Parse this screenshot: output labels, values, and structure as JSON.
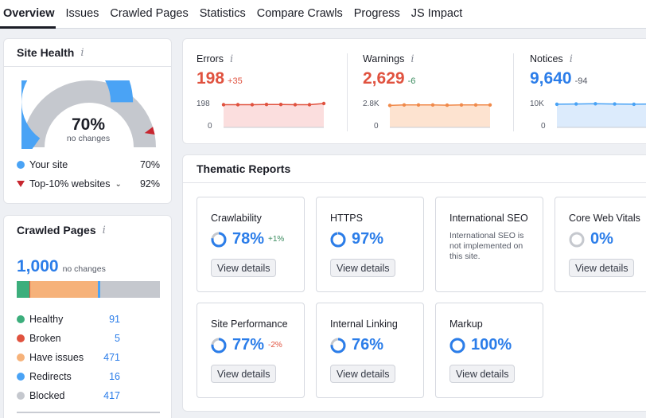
{
  "tabs": [
    "Overview",
    "Issues",
    "Crawled Pages",
    "Statistics",
    "Compare Crawls",
    "Progress",
    "JS Impact"
  ],
  "site_health": {
    "title": "Site Health",
    "info_icon": "i",
    "score": "70%",
    "score_fraction": 0.7,
    "sub": "no changes",
    "your_site_label": "Your site",
    "your_site_value": "70%",
    "top10_label": "Top-10% websites",
    "top10_value": "92%",
    "top10_fraction": 0.92,
    "colors": {
      "your_site": "#4aa3f5",
      "top10": "#c7262f",
      "remainder": "#c5c8ce"
    }
  },
  "crawled_pages": {
    "title": "Crawled Pages",
    "info_icon": "i",
    "total": "1,000",
    "sub": "no changes",
    "items": [
      {
        "label": "Healthy",
        "value": "91",
        "color": "#3cae7c"
      },
      {
        "label": "Broken",
        "value": "5",
        "color": "#e0523f"
      },
      {
        "label": "Have issues",
        "value": "471",
        "color": "#f6b27a"
      },
      {
        "label": "Redirects",
        "value": "16",
        "color": "#4aa3f5"
      },
      {
        "label": "Blocked",
        "value": "417",
        "color": "#c5c8ce"
      }
    ]
  },
  "metrics": [
    {
      "label": "Errors",
      "info_icon": "i",
      "value": "198",
      "delta": "+35",
      "color": "#e0523f",
      "delta_color": "#e0523f",
      "fill": "#fbdede",
      "ymax_label": "198",
      "ymin_label": "0",
      "spark": [
        0.95,
        0.95,
        0.95,
        0.96,
        0.96,
        0.95,
        0.95,
        1.0
      ]
    },
    {
      "label": "Warnings",
      "info_icon": "i",
      "value": "2,629",
      "delta": "-6",
      "color": "#e0523f",
      "delta_color": "#3a8b5e",
      "fill": "#fde3d0",
      "ymax_label": "2.8K",
      "ymin_label": "0",
      "spark": [
        0.92,
        0.94,
        0.94,
        0.94,
        0.93,
        0.94,
        0.94,
        0.94
      ]
    },
    {
      "label": "Notices",
      "info_icon": "i",
      "value": "9,640",
      "delta": "-94",
      "color": "#2b7de9",
      "delta_color": "#555a66",
      "fill": "#dcebfc",
      "ymax_label": "10K",
      "ymin_label": "0",
      "spark": [
        0.97,
        0.98,
        0.99,
        0.98,
        0.97,
        0.98
      ]
    }
  ],
  "thematic": {
    "title": "Thematic Reports",
    "button_label": "View details",
    "cards": [
      {
        "name": "Crawlability",
        "value": "78%",
        "fraction": 0.78,
        "delta": "+1%",
        "delta_color": "#3a8b5e"
      },
      {
        "name": "HTTPS",
        "value": "97%",
        "fraction": 0.97,
        "delta": ""
      },
      {
        "name": "International SEO",
        "value": "",
        "note": "International SEO is not implemented on this site."
      },
      {
        "name": "Core Web Vitals",
        "value": "0%",
        "fraction": 0.0,
        "delta": ""
      },
      {
        "name": "Site Performance",
        "value": "77%",
        "fraction": 0.77,
        "delta": "-2%",
        "delta_color": "#e0523f"
      },
      {
        "name": "Internal Linking",
        "value": "76%",
        "fraction": 0.76,
        "delta": ""
      },
      {
        "name": "Markup",
        "value": "100%",
        "fraction": 1.0,
        "delta": ""
      }
    ]
  }
}
